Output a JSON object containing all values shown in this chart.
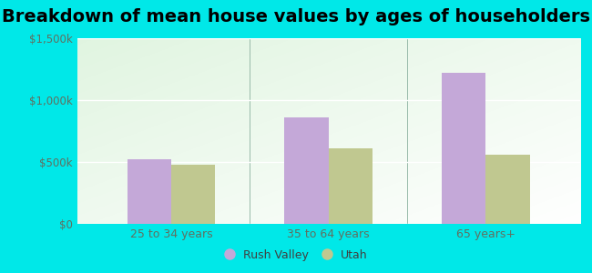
{
  "title": "Breakdown of mean house values by ages of householders",
  "categories": [
    "25 to 34 years",
    "35 to 64 years",
    "65 years+"
  ],
  "rush_valley": [
    520000,
    860000,
    1220000
  ],
  "utah": [
    480000,
    610000,
    560000
  ],
  "rush_valley_color": "#c4a8d8",
  "utah_color": "#c0c890",
  "ylim": [
    0,
    1500000
  ],
  "yticks": [
    0,
    500000,
    1000000,
    1500000
  ],
  "ytick_labels": [
    "$0",
    "$500k",
    "$1,000k",
    "$1,500k"
  ],
  "legend_labels": [
    "Rush Valley",
    "Utah"
  ],
  "background_color": "#00e8e8",
  "title_fontsize": 14,
  "bar_width": 0.28
}
